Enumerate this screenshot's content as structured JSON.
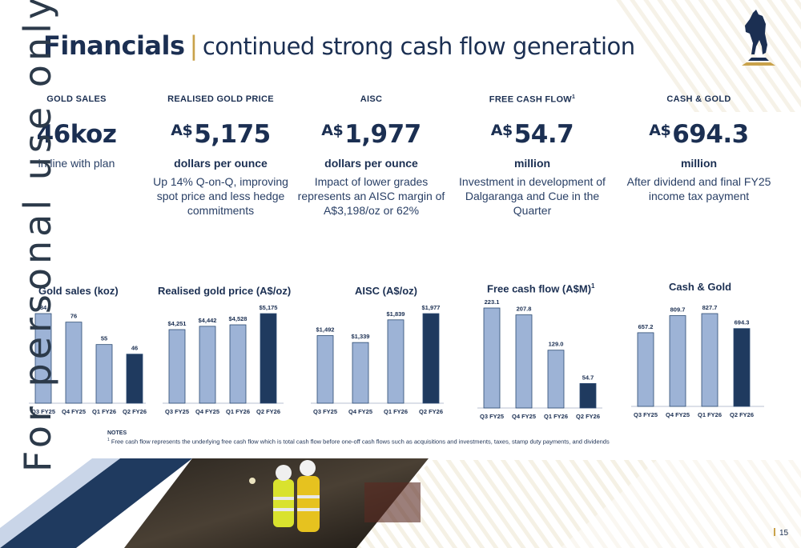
{
  "title": {
    "bold": "Financials",
    "separator": "|",
    "rest": "continued strong cash flow generation"
  },
  "watermark": "For personal use only",
  "kpis": [
    {
      "head": "GOLD SALES",
      "sup": "",
      "currency": "",
      "value": "46koz",
      "unit": "",
      "desc": "",
      "sub": "in line with plan"
    },
    {
      "head": "REALISED GOLD PRICE",
      "sup": "",
      "currency": "A$",
      "value": "5,175",
      "unit": "dollars per ounce",
      "desc": "Up 14% Q-on-Q, improving spot price and less hedge commitments",
      "sub": ""
    },
    {
      "head": "AISC",
      "sup": "",
      "currency": "A$",
      "value": "1,977",
      "unit": "dollars per ounce",
      "desc": "Impact of lower grades represents an AISC margin of A$3,198/oz or 62%",
      "sub": ""
    },
    {
      "head": "FREE CASH FLOW",
      "sup": "1",
      "currency": "A$",
      "value": "54.7",
      "unit": "million",
      "desc": "Investment in development of Dalgaranga and Cue in the Quarter",
      "sub": ""
    },
    {
      "head": "CASH & GOLD",
      "sup": "",
      "currency": "A$",
      "value": "694.3",
      "unit": "million",
      "desc": "After dividend and final FY25 income tax payment",
      "sub": ""
    }
  ],
  "colors": {
    "light_bar": "#9db3d6",
    "dark_bar": "#1f3a5f",
    "accent": "#c9a24a",
    "navy": "#1b2f52"
  },
  "chart_data": [
    {
      "type": "bar",
      "title": "Gold sales (koz)",
      "title_sup": "",
      "categories": [
        "Q3 FY25",
        "Q4 FY25",
        "Q1 FY26",
        "Q2 FY26"
      ],
      "values": [
        84,
        76,
        55,
        46
      ],
      "labels": [
        "84",
        "76",
        "55",
        "46"
      ],
      "ylim": [
        0,
        84
      ]
    },
    {
      "type": "bar",
      "title": "Realised gold price (A$/oz)",
      "title_sup": "",
      "categories": [
        "Q3 FY25",
        "Q4 FY25",
        "Q1 FY26",
        "Q2 FY26"
      ],
      "values": [
        4251,
        4442,
        4528,
        5175
      ],
      "labels": [
        "$4,251",
        "$4,442",
        "$4,528",
        "$5,175"
      ],
      "ylim": [
        0,
        5175
      ]
    },
    {
      "type": "bar",
      "title": "AISC (A$/oz)",
      "title_sup": "",
      "categories": [
        "Q3 FY25",
        "Q4 FY25",
        "Q1 FY26",
        "Q2 FY26"
      ],
      "values": [
        1492,
        1339,
        1839,
        1977
      ],
      "labels": [
        "$1,492",
        "$1,339",
        "$1,839",
        "$1,977"
      ],
      "ylim": [
        0,
        1977
      ]
    },
    {
      "type": "bar",
      "title": "Free cash flow (A$M)",
      "title_sup": "1",
      "categories": [
        "Q3 FY25",
        "Q4 FY25",
        "Q1 FY26",
        "Q2 FY26"
      ],
      "values": [
        223.1,
        207.8,
        129.0,
        54.7
      ],
      "labels": [
        "223.1",
        "207.8",
        "129.0",
        "54.7"
      ],
      "ylim": [
        0,
        223.1
      ]
    },
    {
      "type": "bar",
      "title": "Cash & Gold",
      "title_sup": "",
      "categories": [
        "Q3 FY25",
        "Q4 FY25",
        "Q1 FY26",
        "Q2 FY26"
      ],
      "values": [
        657.2,
        809.7,
        827.7,
        694.3
      ],
      "labels": [
        "657.2",
        "809.7",
        "827.7",
        "694.3"
      ],
      "ylim": [
        0,
        827.7
      ]
    }
  ],
  "notes": {
    "title": "NOTES",
    "sup": "1",
    "body": "Free cash flow represents the underlying free cash flow which is total cash flow before one-off cash flows such as acquisitions and investments, taxes, stamp duty payments, and dividends"
  },
  "page_number": "15"
}
